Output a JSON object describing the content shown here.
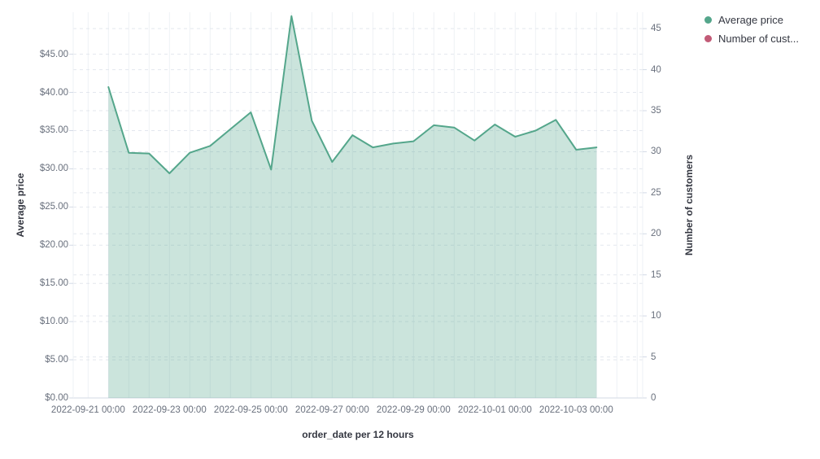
{
  "legend": {
    "items": [
      {
        "label": "Average price",
        "color": "#54a68b"
      },
      {
        "label": "Number of cust...",
        "color": "#c25b77"
      }
    ]
  },
  "chart_data": {
    "type": "area",
    "title": "",
    "xlabel": "order_date per 12 hours",
    "ylabel_left": "Average price",
    "ylabel_right": "Number of customers",
    "grid": true,
    "legend_position": "top-right",
    "x": [
      "2022-09-21 12:00",
      "2022-09-22 00:00",
      "2022-09-22 12:00",
      "2022-09-23 00:00",
      "2022-09-23 12:00",
      "2022-09-24 00:00",
      "2022-09-24 12:00",
      "2022-09-25 00:00",
      "2022-09-25 12:00",
      "2022-09-26 00:00",
      "2022-09-26 12:00",
      "2022-09-27 00:00",
      "2022-09-27 12:00",
      "2022-09-28 00:00",
      "2022-09-28 12:00",
      "2022-09-29 00:00",
      "2022-09-29 12:00",
      "2022-09-30 00:00",
      "2022-09-30 12:00",
      "2022-10-01 00:00",
      "2022-10-01 12:00",
      "2022-10-02 00:00",
      "2022-10-02 12:00",
      "2022-10-03 00:00",
      "2022-10-03 12:00"
    ],
    "series": [
      {
        "name": "Average price",
        "axis": "left",
        "color": "#54a68b",
        "fill_opacity": 0.3,
        "values": [
          40.7,
          32.1,
          32.0,
          29.4,
          32.1,
          33.0,
          35.2,
          37.4,
          29.9,
          50.0,
          36.3,
          30.9,
          34.4,
          32.8,
          33.3,
          33.6,
          35.7,
          35.4,
          33.7,
          35.8,
          34.2,
          35.0,
          36.4,
          32.5,
          32.8
        ]
      },
      {
        "name": "Number of customers",
        "axis": "right",
        "color": "#c25b77",
        "values": []
      }
    ],
    "left_axis": {
      "ylim": [
        0,
        50.5
      ],
      "ticks": [
        {
          "v": 0,
          "label": "$0.00"
        },
        {
          "v": 5,
          "label": "$5.00"
        },
        {
          "v": 10,
          "label": "$10.00"
        },
        {
          "v": 15,
          "label": "$15.00"
        },
        {
          "v": 20,
          "label": "$20.00"
        },
        {
          "v": 25,
          "label": "$25.00"
        },
        {
          "v": 30,
          "label": "$30.00"
        },
        {
          "v": 35,
          "label": "$35.00"
        },
        {
          "v": 40,
          "label": "$40.00"
        },
        {
          "v": 45,
          "label": "$45.00"
        }
      ]
    },
    "right_axis": {
      "ylim": [
        0,
        47
      ],
      "ticks": [
        {
          "v": 0,
          "label": "0"
        },
        {
          "v": 5,
          "label": "5"
        },
        {
          "v": 10,
          "label": "10"
        },
        {
          "v": 15,
          "label": "15"
        },
        {
          "v": 20,
          "label": "20"
        },
        {
          "v": 25,
          "label": "25"
        },
        {
          "v": 30,
          "label": "30"
        },
        {
          "v": 35,
          "label": "35"
        },
        {
          "v": 40,
          "label": "40"
        },
        {
          "v": 45,
          "label": "45"
        }
      ]
    },
    "x_ticks": [
      {
        "k": 0,
        "label": "2022-09-21 00:00"
      },
      {
        "k": 4,
        "label": "2022-09-23 00:00"
      },
      {
        "k": 8,
        "label": "2022-09-25 00:00"
      },
      {
        "k": 12,
        "label": "2022-09-27 00:00"
      },
      {
        "k": 16,
        "label": "2022-09-29 00:00"
      },
      {
        "k": 20,
        "label": "2022-10-01 00:00"
      },
      {
        "k": 24,
        "label": "2022-10-03 00:00"
      }
    ]
  },
  "colors": {
    "v_gridline": "#eef1f5",
    "h_gridline": "#e3e7ee",
    "axis_line": "#d3dae6",
    "tick_text": "#69707d",
    "title_text": "#343741"
  }
}
